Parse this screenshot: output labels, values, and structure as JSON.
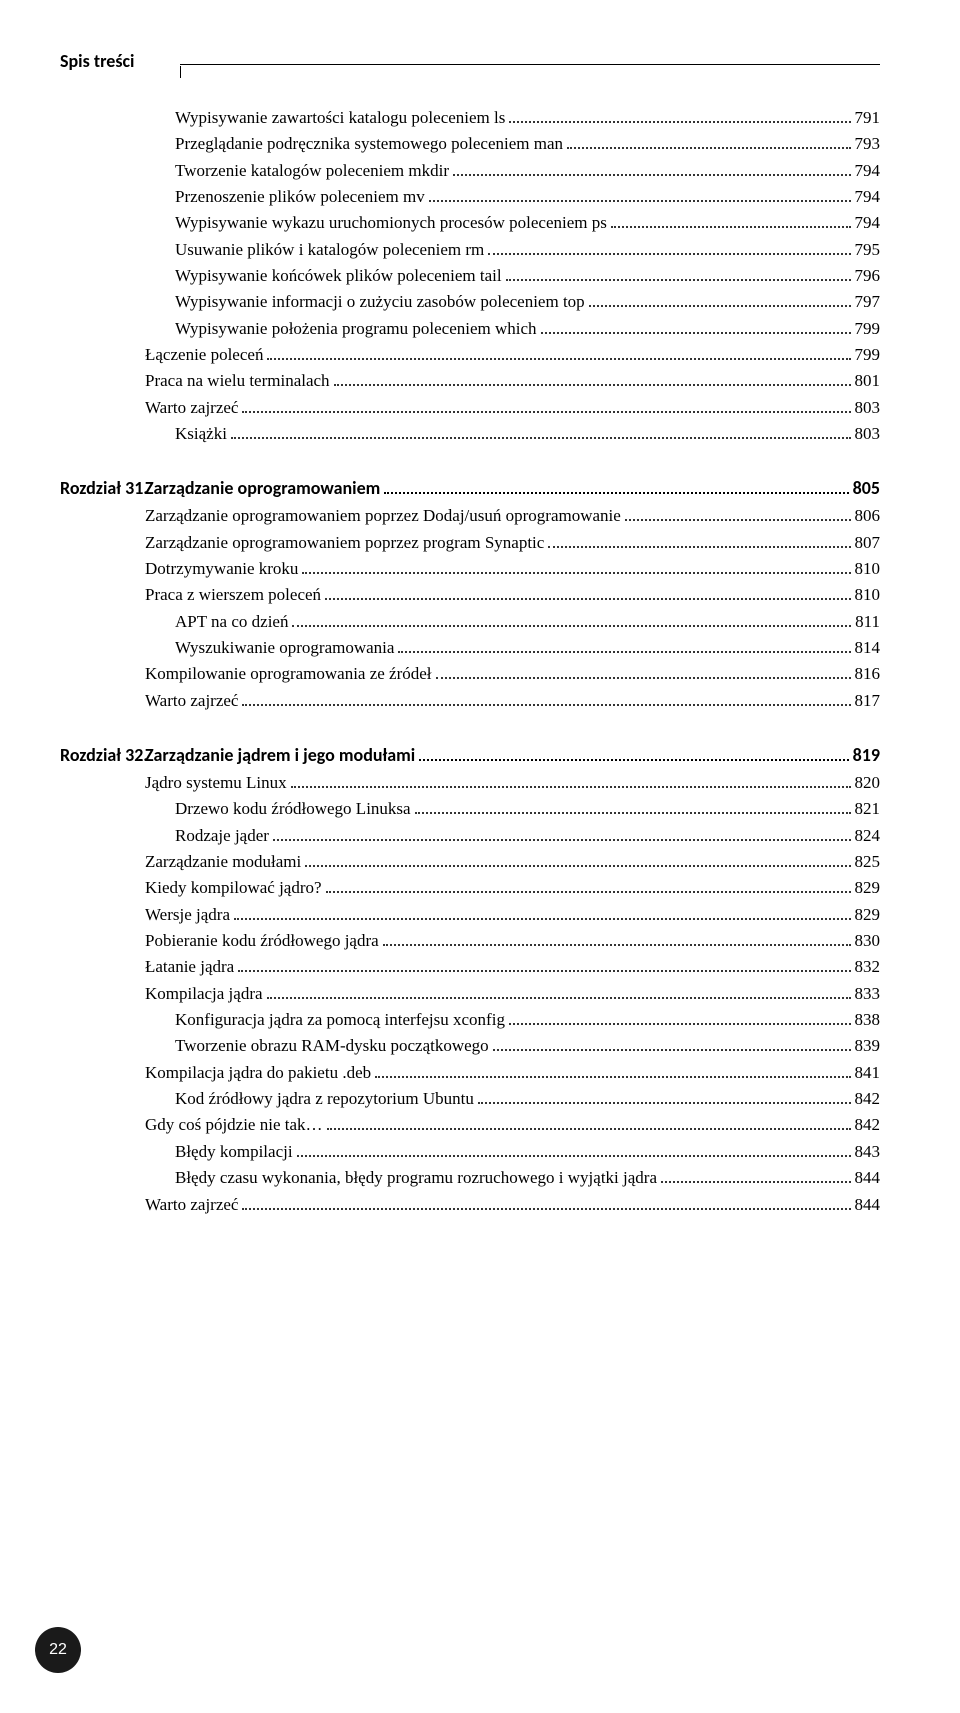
{
  "header": {
    "title": "Spis treści"
  },
  "pageNumber": "22",
  "sections": [
    {
      "heading": null,
      "items": [
        {
          "indent": 1,
          "label": "Wypisywanie zawartości katalogu poleceniem ls",
          "page": "791"
        },
        {
          "indent": 1,
          "label": "Przeglądanie podręcznika systemowego poleceniem man",
          "page": "793"
        },
        {
          "indent": 1,
          "label": "Tworzenie katalogów poleceniem mkdir",
          "page": "794"
        },
        {
          "indent": 1,
          "label": "Przenoszenie plików poleceniem mv",
          "page": "794"
        },
        {
          "indent": 1,
          "label": "Wypisywanie wykazu uruchomionych procesów poleceniem ps",
          "page": "794"
        },
        {
          "indent": 1,
          "label": "Usuwanie plików i katalogów poleceniem rm",
          "page": "795"
        },
        {
          "indent": 1,
          "label": "Wypisywanie końcówek plików poleceniem tail",
          "page": "796"
        },
        {
          "indent": 1,
          "label": "Wypisywanie informacji o zużyciu zasobów poleceniem top",
          "page": "797"
        },
        {
          "indent": 1,
          "label": "Wypisywanie położenia programu poleceniem which",
          "page": "799"
        },
        {
          "indent": 0,
          "label": "Łączenie poleceń",
          "page": "799"
        },
        {
          "indent": 0,
          "label": "Praca na wielu terminalach",
          "page": "801"
        },
        {
          "indent": 0,
          "label": "Warto zajrzeć",
          "page": "803"
        },
        {
          "indent": 1,
          "label": "Książki",
          "page": "803"
        }
      ]
    },
    {
      "heading": {
        "chapno": "Rozdział 31.",
        "title": "Zarządzanie oprogramowaniem",
        "page": "805"
      },
      "items": [
        {
          "indent": 0,
          "label": "Zarządzanie oprogramowaniem poprzez Dodaj/usuń oprogramowanie",
          "page": "806"
        },
        {
          "indent": 0,
          "label": "Zarządzanie oprogramowaniem poprzez program Synaptic",
          "page": "807"
        },
        {
          "indent": 0,
          "label": "Dotrzymywanie kroku",
          "page": "810"
        },
        {
          "indent": 0,
          "label": "Praca z wierszem poleceń",
          "page": "810"
        },
        {
          "indent": 1,
          "label": "APT na co dzień",
          "page": "811"
        },
        {
          "indent": 1,
          "label": "Wyszukiwanie oprogramowania",
          "page": "814"
        },
        {
          "indent": 0,
          "label": "Kompilowanie oprogramowania ze źródeł",
          "page": "816"
        },
        {
          "indent": 0,
          "label": "Warto zajrzeć",
          "page": "817"
        }
      ]
    },
    {
      "heading": {
        "chapno": "Rozdział 32.",
        "title": "Zarządzanie jądrem i jego modułami",
        "page": "819"
      },
      "items": [
        {
          "indent": 0,
          "label": "Jądro systemu Linux",
          "page": "820"
        },
        {
          "indent": 1,
          "label": "Drzewo kodu źródłowego Linuksa",
          "page": "821"
        },
        {
          "indent": 1,
          "label": "Rodzaje jąder",
          "page": "824"
        },
        {
          "indent": 0,
          "label": "Zarządzanie modułami",
          "page": "825"
        },
        {
          "indent": 0,
          "label": "Kiedy kompilować jądro?",
          "page": "829"
        },
        {
          "indent": 0,
          "label": "Wersje jądra",
          "page": "829"
        },
        {
          "indent": 0,
          "label": "Pobieranie kodu źródłowego jądra",
          "page": "830"
        },
        {
          "indent": 0,
          "label": "Łatanie jądra",
          "page": "832"
        },
        {
          "indent": 0,
          "label": "Kompilacja jądra",
          "page": "833"
        },
        {
          "indent": 1,
          "label": "Konfiguracja jądra za pomocą interfejsu xconfig",
          "page": "838"
        },
        {
          "indent": 1,
          "label": "Tworzenie obrazu RAM-dysku początkowego",
          "page": "839"
        },
        {
          "indent": 0,
          "label": "Kompilacja jądra do pakietu .deb",
          "page": "841"
        },
        {
          "indent": 1,
          "label": "Kod źródłowy jądra z repozytorium Ubuntu",
          "page": "842"
        },
        {
          "indent": 0,
          "label": "Gdy coś pójdzie nie tak…",
          "page": "842"
        },
        {
          "indent": 1,
          "label": "Błędy kompilacji",
          "page": "843"
        },
        {
          "indent": 1,
          "label": "Błędy czasu wykonania, błędy programu rozruchowego i wyjątki jądra",
          "page": "844"
        },
        {
          "indent": 0,
          "label": "Warto zajrzeć",
          "page": "844"
        }
      ]
    }
  ]
}
